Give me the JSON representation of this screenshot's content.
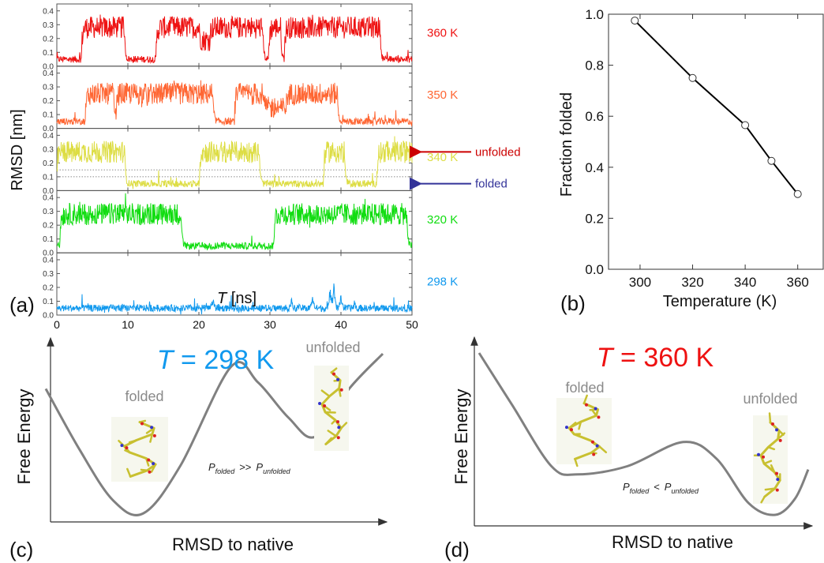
{
  "chart_data": [
    {
      "panel_label": "(a)",
      "type": "line",
      "xlabel_italic": "T",
      "xlabel_rest": " [ns]",
      "ylabel": "RMSD [nm]",
      "xlim": [
        0,
        50
      ],
      "xticks": [
        "0",
        "10",
        "20",
        "30",
        "40",
        "50"
      ],
      "ylim": [
        0,
        0.45
      ],
      "yticks": [
        "0.0",
        "0.1",
        "0.2",
        "0.3",
        "0.4"
      ],
      "grid": false,
      "subplots": [
        {
          "name": "360 K",
          "color": "#ee1111",
          "folded_level": 0.05,
          "unfolded_level": 0.28,
          "segments": [
            [
              0,
              3.5,
              0
            ],
            [
              3.5,
              9.5,
              1
            ],
            [
              9.5,
              14,
              0
            ],
            [
              14,
              20,
              1
            ],
            [
              20,
              21.5,
              0.6
            ],
            [
              21.5,
              29,
              1
            ],
            [
              29,
              29.8,
              0
            ],
            [
              29.8,
              31.5,
              1
            ],
            [
              31.5,
              32,
              0
            ],
            [
              32,
              45.5,
              1
            ],
            [
              45.5,
              50,
              0
            ]
          ]
        },
        {
          "name": "350 K",
          "color": "#ff6633",
          "folded_level": 0.05,
          "unfolded_level": 0.25,
          "segments": [
            [
              0,
              4,
              0
            ],
            [
              4,
              8,
              1
            ],
            [
              8,
              8.3,
              0
            ],
            [
              8.3,
              22,
              1
            ],
            [
              22,
              25,
              0
            ],
            [
              25,
              28,
              1
            ],
            [
              28,
              29,
              1
            ],
            [
              29,
              32.3,
              0.5
            ],
            [
              32.3,
              39.5,
              1
            ],
            [
              39.5,
              50,
              0
            ]
          ]
        },
        {
          "name": "340 K",
          "color": "#dddd44",
          "folded_level": 0.05,
          "unfolded_level": 0.28,
          "dotted_lines": [
            0.1,
            0.15
          ],
          "segments": [
            [
              0,
              9.6,
              1
            ],
            [
              9.6,
              20,
              0
            ],
            [
              20,
              28.5,
              1
            ],
            [
              28.5,
              37.5,
              0
            ],
            [
              37.5,
              40.5,
              1
            ],
            [
              40.5,
              45,
              0
            ],
            [
              45,
              50,
              1
            ]
          ]
        },
        {
          "name": "320 K",
          "color": "#11dd11",
          "folded_level": 0.05,
          "unfolded_level": 0.28,
          "segments": [
            [
              0,
              0.4,
              0
            ],
            [
              0.4,
              17.5,
              1
            ],
            [
              17.5,
              30.5,
              0
            ],
            [
              30.5,
              49.3,
              1
            ],
            [
              49.3,
              50,
              0
            ]
          ]
        },
        {
          "name": "298 K",
          "color": "#1199ee",
          "folded_level": 0.05,
          "unfolded_level": 0.25,
          "spikes": [
            [
              21,
              0.07
            ],
            [
              22,
              0.1
            ],
            [
              33,
              0.1
            ],
            [
              36,
              0.12
            ],
            [
              38.5,
              0.18
            ],
            [
              39,
              0.22
            ],
            [
              40,
              0.14
            ],
            [
              42,
              0.08
            ]
          ],
          "segments": [
            [
              0,
              50,
              0
            ]
          ]
        }
      ],
      "annotations": [
        {
          "text": "unfolded",
          "color": "#cc0000",
          "arrow_to": "340 K",
          "level": 0.28
        },
        {
          "text": "folded",
          "color": "#333399",
          "arrow_to": "340 K",
          "level": 0.05
        }
      ]
    },
    {
      "panel_label": "(b)",
      "type": "line",
      "xlabel": "Temperature (K)",
      "ylabel": "Fraction folded",
      "xlim": [
        288,
        370
      ],
      "ylim": [
        0,
        1.0
      ],
      "xticks": [
        "300",
        "320",
        "340",
        "360"
      ],
      "yticks": [
        "0.0",
        "0.2",
        "0.4",
        "0.6",
        "0.8",
        "1.0"
      ],
      "x": [
        298,
        320,
        340,
        350,
        360
      ],
      "y": [
        0.975,
        0.75,
        0.565,
        0.425,
        0.295
      ],
      "color": "#000000",
      "marker": "open-circle"
    },
    {
      "panel_label": "(c)",
      "type": "line",
      "title_italic": "T",
      "title_rest": " = 298 K",
      "title_color": "#1199ee",
      "xlabel": "RMSD to native",
      "ylabel": "Free Energy",
      "curve_color": "#808080",
      "labels": {
        "left": "folded",
        "right": "unfolded"
      },
      "relation": {
        "p": "P",
        "sub1": "folded",
        "op": ">>",
        "sub2": "unfolded"
      },
      "x": [
        0,
        0.1,
        0.2,
        0.29,
        0.4,
        0.55,
        0.63,
        0.72,
        0.8,
        0.9,
        1.0
      ],
      "y": [
        0.78,
        0.4,
        0.08,
        0.0,
        0.3,
        0.92,
        0.82,
        0.6,
        0.48,
        0.78,
        1.0
      ]
    },
    {
      "panel_label": "(d)",
      "type": "line",
      "title_italic": "T",
      "title_rest": " = 360 K",
      "title_color": "#ee1111",
      "xlabel": "RMSD to native",
      "ylabel": "Free Energy",
      "curve_color": "#808080",
      "labels": {
        "left": "folded",
        "right": "unfolded"
      },
      "relation": {
        "p": "P",
        "sub1": "folded",
        "op": "<",
        "sub2": "unfolded"
      },
      "x": [
        0,
        0.1,
        0.22,
        0.3,
        0.45,
        0.62,
        0.72,
        0.82,
        0.9,
        0.96,
        1.0
      ],
      "y": [
        1.0,
        0.68,
        0.3,
        0.25,
        0.3,
        0.45,
        0.35,
        0.07,
        0.0,
        0.1,
        0.28
      ]
    }
  ]
}
